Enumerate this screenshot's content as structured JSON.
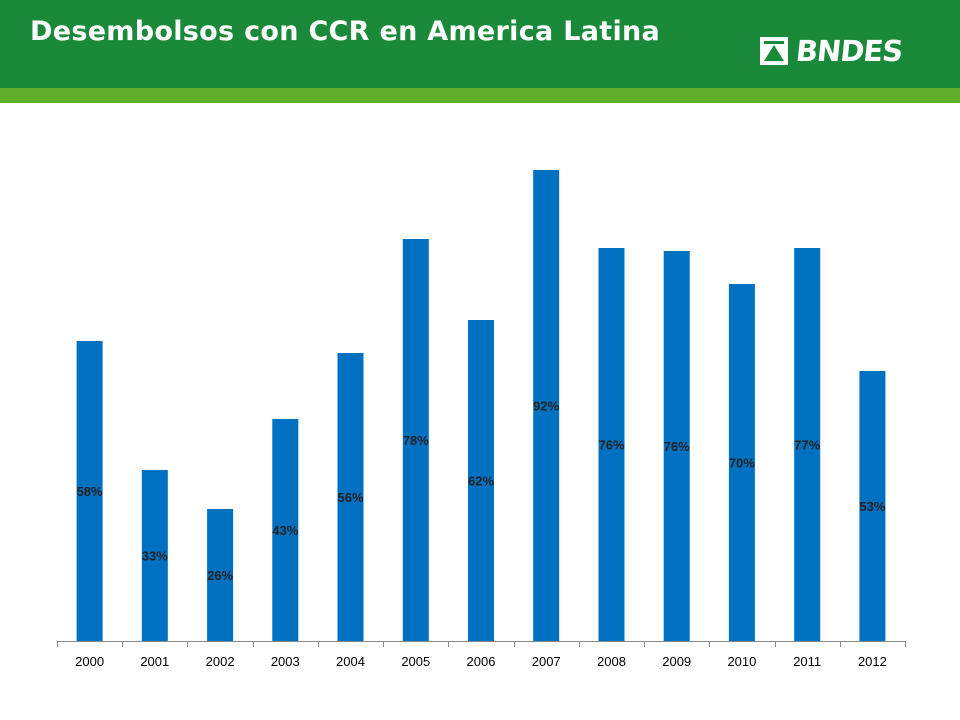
{
  "header": {
    "title": "Desembolsos con CCR en America Latina",
    "logo_text": "BNDES",
    "background_color": "#1a8a3a",
    "stripe_color": "#5fae2c"
  },
  "chart_data": {
    "type": "bar",
    "title": "",
    "xlabel": "",
    "ylabel": "",
    "grid": false,
    "legend": "none",
    "bar_color": "#0070c0",
    "categories": [
      "2000",
      "2001",
      "2002",
      "2003",
      "2004",
      "2005",
      "2006",
      "2007",
      "2008",
      "2009",
      "2010",
      "2011",
      "2012"
    ],
    "values": [
      100,
      57,
      44,
      74,
      96,
      134,
      107,
      157,
      131,
      130,
      119,
      131,
      90
    ],
    "labels": [
      "58%",
      "33%",
      "26%",
      "43%",
      "56%",
      "78%",
      "62%",
      "92%",
      "76%",
      "76%",
      "70%",
      "77%",
      "53%"
    ],
    "ylim": [
      0,
      160
    ]
  }
}
